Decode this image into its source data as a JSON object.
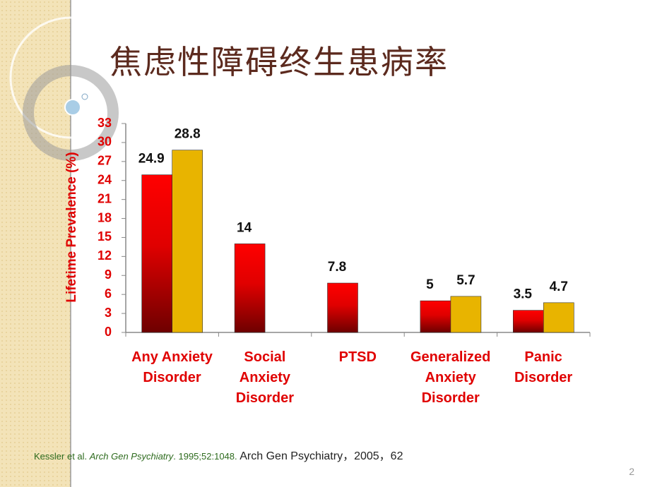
{
  "chart_data": {
    "type": "bar",
    "title": "焦虑性障碍终生患病率",
    "y_label": "Lifetime Prevalence (%)",
    "categories": [
      "Any Anxiety\nDisorder",
      "Social\nAnxiety\nDisorder",
      "PTSD",
      "Generalized\nAnxiety\nDisorder",
      "Panic\nDisorder"
    ],
    "series": [
      {
        "color": "#ff0000",
        "values": [
          24.9,
          14,
          7.8,
          5,
          3.5
        ]
      },
      {
        "color": "#e8b400",
        "values": [
          28.8,
          null,
          null,
          5.7,
          4.7
        ]
      }
    ],
    "ylim": [
      0,
      33
    ],
    "yticks": [
      0,
      3,
      6,
      9,
      12,
      15,
      18,
      21,
      24,
      27,
      30,
      33
    ],
    "footnote": [
      "Kessler et al. ",
      "Arch Gen Psychiatry",
      ". 1995;52:1048. ",
      "Arch Gen Psychiatry，2005，62"
    ],
    "page_number": "2"
  }
}
